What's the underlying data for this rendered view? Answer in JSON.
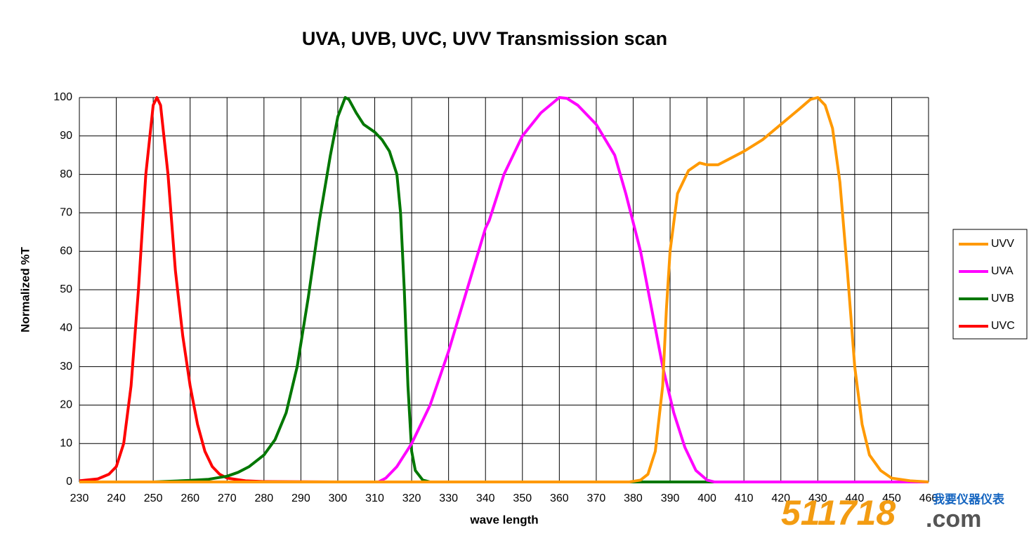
{
  "chart_data": {
    "type": "line",
    "title": "UVA, UVB, UVC, UVV Transmission scan",
    "xlabel": "wave length",
    "ylabel": "Normalized %T",
    "xlim": [
      230,
      460
    ],
    "xticks": [
      230,
      240,
      250,
      260,
      270,
      280,
      290,
      300,
      310,
      320,
      330,
      340,
      350,
      360,
      370,
      380,
      390,
      400,
      410,
      420,
      430,
      440,
      450,
      460
    ],
    "ylim": [
      0,
      100
    ],
    "yticks": [
      0,
      10,
      20,
      30,
      40,
      50,
      60,
      70,
      80,
      90,
      100
    ],
    "grid": true,
    "legend": "right",
    "series": [
      {
        "name": "UVV",
        "color": "#ff9900",
        "x": [
          230,
          379,
          382,
          384,
          386,
          388,
          389,
          390,
          392,
          395,
          398,
          400,
          403,
          406,
          410,
          415,
          420,
          425,
          428,
          430,
          432,
          434,
          436,
          438,
          440,
          442,
          444,
          447,
          450,
          455,
          460
        ],
        "values": [
          0,
          0,
          0.5,
          2,
          8,
          25,
          45,
          60,
          75,
          81,
          83,
          82.5,
          82.5,
          84,
          86,
          89,
          93,
          97,
          99.5,
          100,
          98,
          92,
          78,
          55,
          30,
          15,
          7,
          3,
          1,
          0.3,
          0
        ]
      },
      {
        "name": "UVA",
        "color": "#ff00ff",
        "x": [
          230,
          311,
          313,
          316,
          320,
          325,
          330,
          335,
          340,
          341,
          345,
          350,
          355,
          360,
          362,
          365,
          370,
          375,
          378,
          382,
          385,
          388,
          391,
          394,
          397,
          400,
          402,
          460
        ],
        "values": [
          0,
          0,
          1,
          4,
          10,
          20,
          34,
          50,
          66,
          68,
          80,
          90,
          96,
          100,
          99.8,
          98,
          93,
          85,
          75,
          60,
          45,
          30,
          18,
          9,
          3,
          0.5,
          0,
          0
        ]
      },
      {
        "name": "UVB",
        "color": "#007700",
        "x": [
          236,
          250,
          260,
          265,
          270,
          273,
          276,
          280,
          283,
          286,
          289,
          292,
          295,
          298,
          300,
          302,
          303,
          305,
          307,
          310,
          312,
          314,
          316,
          317,
          318,
          319,
          320,
          321,
          323,
          325,
          460
        ],
        "values": [
          0,
          0,
          0.4,
          0.7,
          1.5,
          2.5,
          4,
          7,
          11,
          18,
          30,
          48,
          68,
          85,
          95,
          100,
          99.5,
          96,
          93,
          91,
          89,
          86,
          80,
          70,
          50,
          25,
          8,
          3,
          0.5,
          0,
          0
        ]
      },
      {
        "name": "UVC",
        "color": "#ff0000",
        "x": [
          230,
          235,
          238,
          240,
          242,
          244,
          246,
          248,
          250,
          251,
          252,
          254,
          256,
          258,
          260,
          262,
          264,
          266,
          268,
          270,
          275,
          280,
          300,
          460
        ],
        "values": [
          0.3,
          0.8,
          2,
          4,
          10,
          25,
          50,
          80,
          98,
          100,
          98,
          80,
          55,
          38,
          25,
          15,
          8,
          4,
          2,
          1,
          0.3,
          0.1,
          0,
          0
        ]
      }
    ]
  },
  "watermark": {
    "number": "511718",
    "domain": ".com",
    "tagline": "我要仪器仪表"
  }
}
